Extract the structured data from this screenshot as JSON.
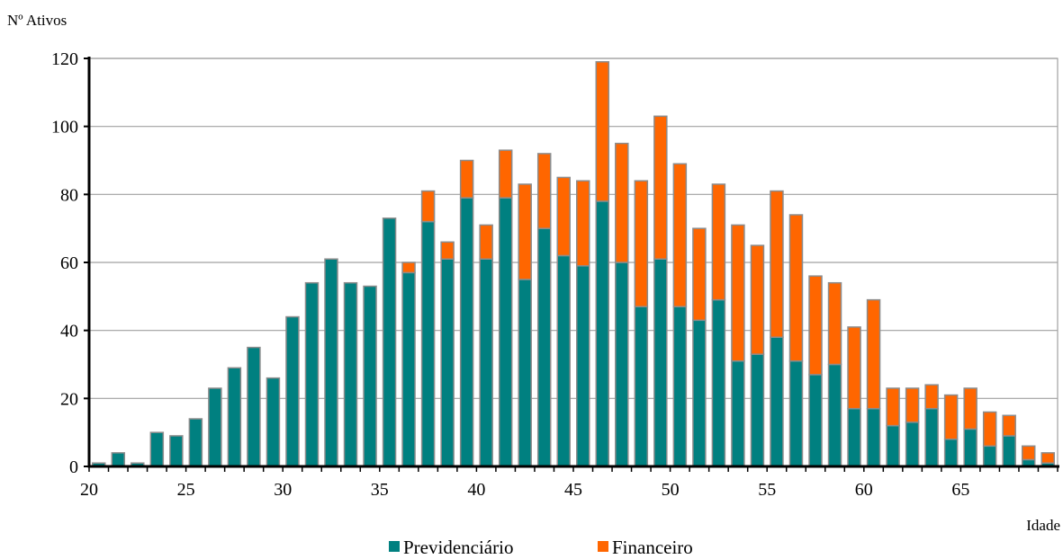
{
  "chart_data": {
    "type": "bar",
    "stacked": true,
    "title": "",
    "ylabel": "Nº Ativos",
    "xlabel": "Idade",
    "ylim": [
      0,
      120
    ],
    "xlim": [
      20,
      70
    ],
    "yticks": [
      0,
      20,
      40,
      60,
      80,
      100,
      120
    ],
    "xticks": [
      20,
      25,
      30,
      35,
      40,
      45,
      50,
      55,
      60,
      65
    ],
    "grid": true,
    "legend_position": "bottom",
    "x": [
      20,
      21,
      22,
      23,
      24,
      25,
      26,
      27,
      28,
      29,
      30,
      31,
      32,
      33,
      34,
      35,
      36,
      37,
      38,
      39,
      40,
      41,
      42,
      43,
      44,
      45,
      46,
      47,
      48,
      49,
      50,
      51,
      52,
      53,
      54,
      55,
      56,
      57,
      58,
      59,
      60,
      61,
      62,
      63,
      64,
      65,
      66,
      67,
      68,
      69
    ],
    "series": [
      {
        "name": "Previdenciário",
        "color": "#008080",
        "values": [
          1,
          4,
          1,
          10,
          9,
          14,
          23,
          29,
          35,
          26,
          44,
          54,
          61,
          54,
          53,
          73,
          57,
          72,
          61,
          79,
          61,
          79,
          55,
          70,
          62,
          59,
          78,
          60,
          47,
          61,
          47,
          43,
          49,
          31,
          33,
          38,
          31,
          27,
          30,
          17,
          17,
          12,
          13,
          17,
          8,
          11,
          6,
          9,
          2,
          1
        ]
      },
      {
        "name": "Financeiro",
        "color": "#FF6600",
        "values": [
          0,
          0,
          0,
          0,
          0,
          0,
          0,
          0,
          0,
          0,
          0,
          0,
          0,
          0,
          0,
          0,
          3,
          9,
          5,
          11,
          10,
          14,
          28,
          22,
          23,
          25,
          41,
          35,
          37,
          42,
          42,
          27,
          34,
          40,
          32,
          43,
          43,
          29,
          24,
          24,
          32,
          11,
          10,
          7,
          13,
          12,
          10,
          6,
          4,
          3
        ]
      }
    ]
  }
}
